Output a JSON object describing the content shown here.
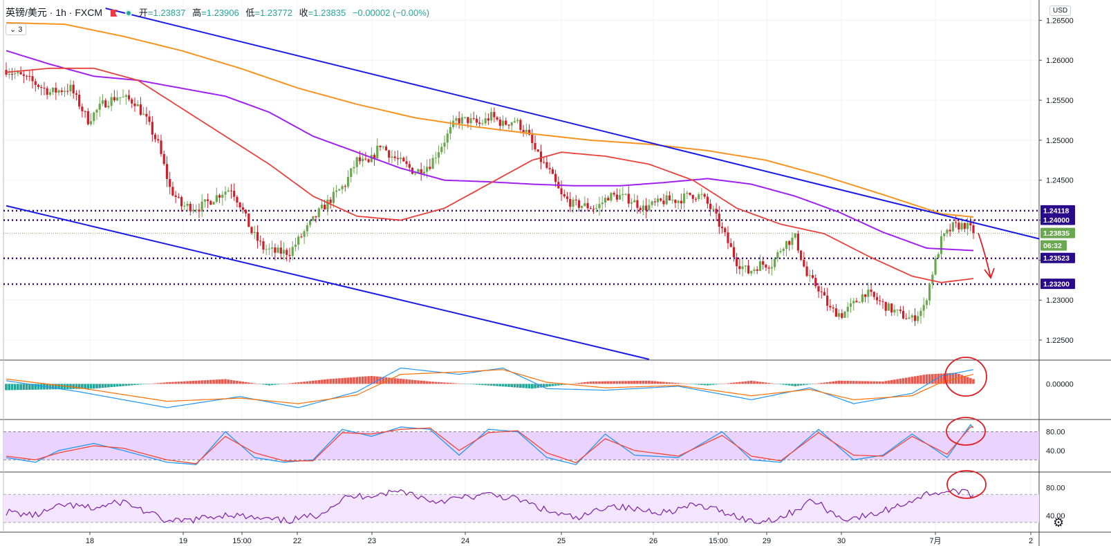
{
  "header": {
    "symbol": "英镑/美元 · 1h · FXCM",
    "open_label": "开",
    "open": "=1.23837",
    "high_label": "高",
    "high": "=1.23906",
    "low_label": "低",
    "low": "=1.23772",
    "close_label": "收",
    "close": "=1.23835",
    "change": "−0.00002 (−0.00%)",
    "indicator_count": "3",
    "currency": "USD"
  },
  "colors": {
    "up": "#6aa84f",
    "down": "#cc1f2a",
    "trend": "#1a1ae6",
    "ma_orange": "#f7931e",
    "ma_purple": "#a020f0",
    "ma_red": "#e8403a",
    "level": "#2a0a8a",
    "macd_up": "#e85a4f",
    "macd_down": "#26a69a",
    "band": "#e6ccff",
    "annot": "#e01b24"
  },
  "chart_data": [
    {
      "type": "candlestick",
      "name": "英镑/美元",
      "yaxis_ticks": [
        "1.26500",
        "1.26000",
        "1.25500",
        "1.25000",
        "1.24500",
        "1.24000",
        "1.23500",
        "1.23000",
        "1.22500"
      ],
      "ylim": [
        1.2225,
        1.2665
      ],
      "xaxis_ticks": [
        "18",
        "19",
        "15:00",
        "22",
        "23",
        "24",
        "25",
        "26",
        "15:00",
        "29",
        "30",
        "7月",
        "2"
      ],
      "price_labels": [
        {
          "text": "1.24118",
          "value": 1.24118,
          "kind": "level"
        },
        {
          "text": "1.24000",
          "value": 1.24,
          "kind": "level"
        },
        {
          "text": "1.23835",
          "value": 1.23835,
          "kind": "last"
        },
        {
          "text": "06:32",
          "value": 1.237,
          "kind": "timer"
        },
        {
          "text": "1.23523",
          "value": 1.23523,
          "kind": "level"
        },
        {
          "text": "1.23200",
          "value": 1.232,
          "kind": "level"
        }
      ],
      "key_points": [
        [
          0,
          1.2588
        ],
        [
          8,
          1.2575
        ],
        [
          15,
          1.256
        ],
        [
          22,
          1.2565
        ],
        [
          28,
          1.2525
        ],
        [
          33,
          1.2545
        ],
        [
          38,
          1.2555
        ],
        [
          44,
          1.2548
        ],
        [
          48,
          1.2525
        ],
        [
          52,
          1.2495
        ],
        [
          56,
          1.244
        ],
        [
          60,
          1.2418
        ],
        [
          66,
          1.2416
        ],
        [
          70,
          1.2425
        ],
        [
          74,
          1.2435
        ],
        [
          77,
          1.244
        ],
        [
          80,
          1.242
        ],
        [
          84,
          1.2385
        ],
        [
          88,
          1.2365
        ],
        [
          92,
          1.236
        ],
        [
          97,
          1.236
        ],
        [
          102,
          1.2385
        ],
        [
          107,
          1.241
        ],
        [
          112,
          1.243
        ],
        [
          116,
          1.2445
        ],
        [
          120,
          1.2475
        ],
        [
          124,
          1.247
        ],
        [
          128,
          1.2495
        ],
        [
          132,
          1.248
        ],
        [
          136,
          1.247
        ],
        [
          140,
          1.246
        ],
        [
          145,
          1.247
        ],
        [
          150,
          1.25
        ],
        [
          154,
          1.2525
        ],
        [
          158,
          1.2525
        ],
        [
          162,
          1.252
        ],
        [
          166,
          1.253
        ],
        [
          170,
          1.252
        ],
        [
          174,
          1.2525
        ],
        [
          178,
          1.251
        ],
        [
          182,
          1.248
        ],
        [
          186,
          1.246
        ],
        [
          190,
          1.243
        ],
        [
          194,
          1.242
        ],
        [
          198,
          1.2418
        ],
        [
          202,
          1.2415
        ],
        [
          206,
          1.243
        ],
        [
          210,
          1.243
        ],
        [
          214,
          1.2425
        ],
        [
          218,
          1.2415
        ],
        [
          222,
          1.242
        ],
        [
          226,
          1.2425
        ],
        [
          230,
          1.2425
        ],
        [
          234,
          1.2432
        ],
        [
          238,
          1.243
        ],
        [
          242,
          1.241
        ],
        [
          246,
          1.238
        ],
        [
          250,
          1.2348
        ],
        [
          254,
          1.2335
        ],
        [
          258,
          1.2345
        ],
        [
          262,
          1.2345
        ],
        [
          266,
          1.237
        ],
        [
          270,
          1.2378
        ],
        [
          274,
          1.233
        ],
        [
          278,
          1.2315
        ],
        [
          282,
          1.2288
        ],
        [
          286,
          1.2282
        ],
        [
          290,
          1.2295
        ],
        [
          294,
          1.231
        ],
        [
          298,
          1.23
        ],
        [
          302,
          1.229
        ],
        [
          306,
          1.2282
        ],
        [
          310,
          1.2276
        ],
        [
          314,
          1.229
        ],
        [
          317,
          1.2335
        ],
        [
          320,
          1.2375
        ],
        [
          324,
          1.2392
        ],
        [
          328,
          1.2394
        ],
        [
          331,
          1.2386
        ]
      ],
      "ma_orange": [
        [
          0,
          1.2647
        ],
        [
          20,
          1.2645
        ],
        [
          40,
          1.263
        ],
        [
          60,
          1.2612
        ],
        [
          80,
          1.259
        ],
        [
          100,
          1.2565
        ],
        [
          120,
          1.2545
        ],
        [
          140,
          1.2528
        ],
        [
          160,
          1.2517
        ],
        [
          180,
          1.2508
        ],
        [
          200,
          1.25
        ],
        [
          220,
          1.2495
        ],
        [
          240,
          1.2487
        ],
        [
          260,
          1.2475
        ],
        [
          280,
          1.2455
        ],
        [
          300,
          1.2432
        ],
        [
          320,
          1.2408
        ],
        [
          331,
          1.2404
        ]
      ],
      "ma_purple": [
        [
          0,
          1.2612
        ],
        [
          15,
          1.2595
        ],
        [
          30,
          1.258
        ],
        [
          45,
          1.2575
        ],
        [
          60,
          1.2565
        ],
        [
          75,
          1.2555
        ],
        [
          90,
          1.2535
        ],
        [
          105,
          1.2505
        ],
        [
          120,
          1.2485
        ],
        [
          135,
          1.2465
        ],
        [
          150,
          1.245
        ],
        [
          165,
          1.2448
        ],
        [
          180,
          1.2445
        ],
        [
          195,
          1.2443
        ],
        [
          210,
          1.2443
        ],
        [
          225,
          1.2447
        ],
        [
          240,
          1.2452
        ],
        [
          255,
          1.2445
        ],
        [
          270,
          1.243
        ],
        [
          285,
          1.241
        ],
        [
          300,
          1.2385
        ],
        [
          315,
          1.2365
        ],
        [
          331,
          1.2362
        ]
      ],
      "ma_red": [
        [
          0,
          1.2585
        ],
        [
          15,
          1.259
        ],
        [
          30,
          1.259
        ],
        [
          45,
          1.2575
        ],
        [
          60,
          1.254
        ],
        [
          75,
          1.2505
        ],
        [
          90,
          1.247
        ],
        [
          105,
          1.243
        ],
        [
          120,
          1.2405
        ],
        [
          135,
          1.24
        ],
        [
          150,
          1.2415
        ],
        [
          165,
          1.2445
        ],
        [
          180,
          1.2475
        ],
        [
          190,
          1.2485
        ],
        [
          205,
          1.248
        ],
        [
          220,
          1.247
        ],
        [
          235,
          1.245
        ],
        [
          250,
          1.2415
        ],
        [
          265,
          1.2395
        ],
        [
          280,
          1.2383
        ],
        [
          295,
          1.2355
        ],
        [
          310,
          1.233
        ],
        [
          320,
          1.2322
        ],
        [
          331,
          1.2327
        ]
      ],
      "trendline_upper": [
        [
          34,
          1.2665
        ],
        [
          331,
          1.2397
        ]
      ],
      "trendline_lower": [
        [
          0,
          1.2418
        ],
        [
          220,
          1.2226
        ]
      ],
      "annotations": [
        "arrow-down"
      ]
    },
    {
      "type": "histogram",
      "name": "MACD",
      "yaxis_ticks": [
        "0.00000"
      ],
      "ylim": [
        -0.0045,
        0.003
      ],
      "hist_key": [
        [
          0,
          -0.0008
        ],
        [
          30,
          -0.0006
        ],
        [
          55,
          0.0002
        ],
        [
          75,
          0.0006
        ],
        [
          90,
          -0.0002
        ],
        [
          110,
          0.0006
        ],
        [
          125,
          0.001
        ],
        [
          145,
          0.0003
        ],
        [
          165,
          -0.0002
        ],
        [
          180,
          -0.0006
        ],
        [
          200,
          0.0003
        ],
        [
          220,
          0.0004
        ],
        [
          240,
          -0.0002
        ],
        [
          255,
          0.0004
        ],
        [
          270,
          -0.0003
        ],
        [
          285,
          0.0004
        ],
        [
          300,
          0.0003
        ],
        [
          315,
          0.0012
        ],
        [
          325,
          0.0014
        ],
        [
          331,
          0.0006
        ]
      ],
      "macd_key": [
        [
          0,
          0.0004
        ],
        [
          25,
          -0.001
        ],
        [
          55,
          -0.003
        ],
        [
          80,
          -0.0016
        ],
        [
          100,
          -0.003
        ],
        [
          120,
          -0.001
        ],
        [
          135,
          0.002
        ],
        [
          155,
          0.0012
        ],
        [
          170,
          0.002
        ],
        [
          185,
          -0.0006
        ],
        [
          205,
          -0.0008
        ],
        [
          230,
          -0.0003
        ],
        [
          255,
          -0.002
        ],
        [
          275,
          -0.0005
        ],
        [
          290,
          -0.0025
        ],
        [
          310,
          -0.0012
        ],
        [
          320,
          0.001
        ],
        [
          331,
          0.0018
        ]
      ],
      "signal_key": [
        [
          0,
          0.0006
        ],
        [
          25,
          -0.0005
        ],
        [
          55,
          -0.0022
        ],
        [
          80,
          -0.0018
        ],
        [
          100,
          -0.0025
        ],
        [
          120,
          -0.0014
        ],
        [
          135,
          0.0012
        ],
        [
          155,
          0.0015
        ],
        [
          170,
          0.0018
        ],
        [
          185,
          0.0002
        ],
        [
          205,
          -0.0005
        ],
        [
          230,
          -0.0002
        ],
        [
          255,
          -0.0015
        ],
        [
          275,
          -0.0007
        ],
        [
          290,
          -0.002
        ],
        [
          310,
          -0.0015
        ],
        [
          320,
          0.0002
        ],
        [
          331,
          0.0012
        ]
      ]
    },
    {
      "type": "line",
      "name": "Stochastic",
      "yaxis_ticks": [
        "80.00",
        "40.00"
      ],
      "ylim": [
        0,
        100
      ],
      "band": [
        20,
        80
      ],
      "k_key": [
        [
          0,
          25
        ],
        [
          10,
          15
        ],
        [
          18,
          40
        ],
        [
          30,
          55
        ],
        [
          40,
          40
        ],
        [
          55,
          15
        ],
        [
          65,
          10
        ],
        [
          75,
          80
        ],
        [
          85,
          25
        ],
        [
          95,
          15
        ],
        [
          105,
          20
        ],
        [
          115,
          85
        ],
        [
          125,
          70
        ],
        [
          135,
          90
        ],
        [
          145,
          85
        ],
        [
          155,
          30
        ],
        [
          165,
          85
        ],
        [
          175,
          80
        ],
        [
          185,
          25
        ],
        [
          195,
          10
        ],
        [
          205,
          75
        ],
        [
          215,
          30
        ],
        [
          230,
          25
        ],
        [
          245,
          80
        ],
        [
          255,
          20
        ],
        [
          265,
          15
        ],
        [
          278,
          85
        ],
        [
          290,
          20
        ],
        [
          300,
          30
        ],
        [
          310,
          75
        ],
        [
          322,
          25
        ],
        [
          330,
          95
        ],
        [
          331,
          88
        ]
      ],
      "d_key": [
        [
          0,
          28
        ],
        [
          10,
          20
        ],
        [
          18,
          35
        ],
        [
          30,
          50
        ],
        [
          40,
          45
        ],
        [
          55,
          20
        ],
        [
          65,
          12
        ],
        [
          75,
          70
        ],
        [
          85,
          35
        ],
        [
          95,
          18
        ],
        [
          105,
          18
        ],
        [
          115,
          78
        ],
        [
          125,
          75
        ],
        [
          135,
          85
        ],
        [
          145,
          88
        ],
        [
          155,
          40
        ],
        [
          165,
          78
        ],
        [
          175,
          82
        ],
        [
          185,
          35
        ],
        [
          195,
          14
        ],
        [
          205,
          65
        ],
        [
          215,
          40
        ],
        [
          230,
          28
        ],
        [
          245,
          72
        ],
        [
          255,
          28
        ],
        [
          265,
          18
        ],
        [
          278,
          78
        ],
        [
          290,
          30
        ],
        [
          300,
          28
        ],
        [
          310,
          70
        ],
        [
          322,
          32
        ],
        [
          330,
          90
        ],
        [
          331,
          90
        ]
      ]
    },
    {
      "type": "line",
      "name": "RSI",
      "yaxis_ticks": [
        "80.00",
        "40.00"
      ],
      "ylim": [
        20,
        100
      ],
      "band": [
        30,
        70
      ],
      "rsi_key": [
        [
          0,
          45
        ],
        [
          10,
          40
        ],
        [
          20,
          55
        ],
        [
          30,
          50
        ],
        [
          40,
          60
        ],
        [
          48,
          45
        ],
        [
          56,
          30
        ],
        [
          66,
          35
        ],
        [
          76,
          42
        ],
        [
          86,
          35
        ],
        [
          96,
          32
        ],
        [
          106,
          40
        ],
        [
          116,
          65
        ],
        [
          126,
          70
        ],
        [
          136,
          75
        ],
        [
          146,
          60
        ],
        [
          156,
          65
        ],
        [
          166,
          70
        ],
        [
          176,
          62
        ],
        [
          186,
          45
        ],
        [
          196,
          35
        ],
        [
          206,
          55
        ],
        [
          216,
          48
        ],
        [
          226,
          45
        ],
        [
          236,
          55
        ],
        [
          246,
          45
        ],
        [
          256,
          30
        ],
        [
          266,
          38
        ],
        [
          276,
          62
        ],
        [
          286,
          35
        ],
        [
          296,
          40
        ],
        [
          306,
          55
        ],
        [
          316,
          72
        ],
        [
          326,
          75
        ],
        [
          331,
          68
        ]
      ]
    }
  ]
}
